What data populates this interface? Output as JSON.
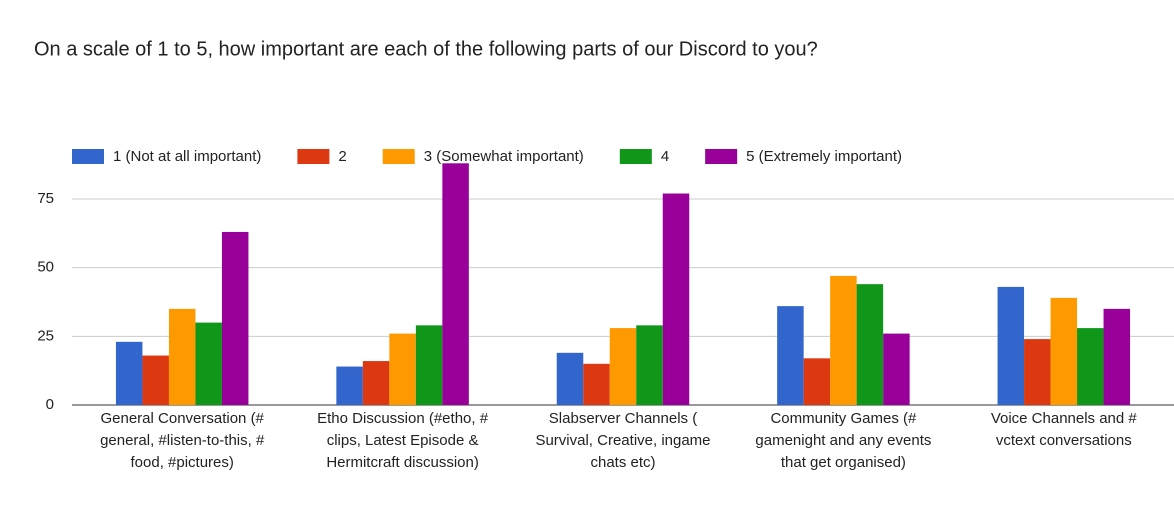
{
  "chart_data": {
    "type": "bar",
    "title": "On a scale of 1 to 5, how important are each of the following parts of our Discord to you?",
    "categories": [
      [
        "General Conversation (#",
        "general, #listen-to-this, #",
        "food, #pictures)"
      ],
      [
        "Etho Discussion (#etho, #",
        "clips, Latest Episode &",
        "Hermitcraft discussion)"
      ],
      [
        "Slabserver Channels (",
        "Survival, Creative, ingame",
        "chats etc)"
      ],
      [
        "Community Games (#",
        "gamenight and any events",
        "that get organised)"
      ],
      [
        "Voice Channels and #",
        "vctext conversations"
      ]
    ],
    "series": [
      {
        "name": "1 (Not at all important)",
        "color": "#3366cc",
        "values": [
          23,
          14,
          19,
          36,
          43
        ]
      },
      {
        "name": "2",
        "color": "#dc3912",
        "values": [
          18,
          16,
          15,
          17,
          24
        ]
      },
      {
        "name": "3 (Somewhat important)",
        "color": "#ff9900",
        "values": [
          35,
          26,
          28,
          47,
          39
        ]
      },
      {
        "name": "4",
        "color": "#109618",
        "values": [
          30,
          29,
          29,
          44,
          28
        ]
      },
      {
        "name": "5 (Extremely important)",
        "color": "#990099",
        "values": [
          63,
          88,
          77,
          26,
          35
        ]
      }
    ],
    "ylim": [
      0,
      88
    ],
    "yticks": [
      0,
      25,
      50,
      75
    ],
    "grid": true
  }
}
